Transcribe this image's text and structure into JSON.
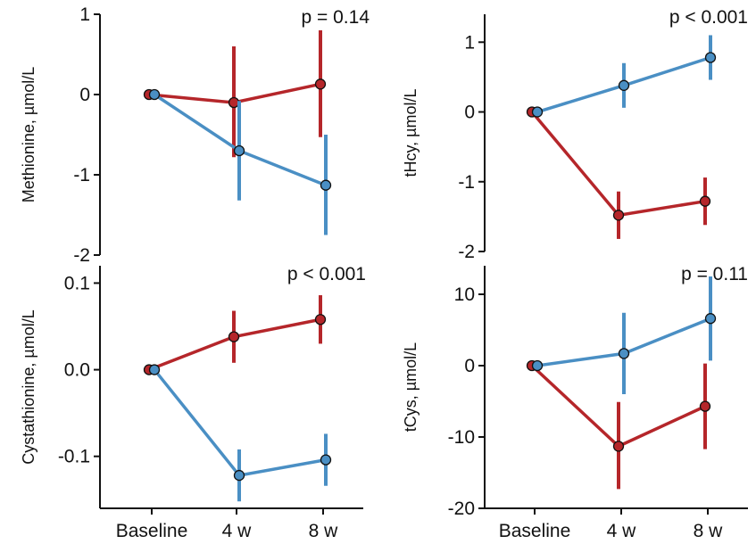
{
  "figure": {
    "x_categories": [
      "Baseline",
      "4 w",
      "8 w"
    ],
    "colors": {
      "red": "#b5262a",
      "blue": "#4a8fc4",
      "axis": "#111111"
    }
  },
  "chart_data": [
    {
      "type": "line",
      "panel": "top-left",
      "ylabel": "Methionine, µmol/L",
      "annotation": "p =  0.14",
      "ylim": [
        -2,
        1
      ],
      "yticks": [
        -2,
        -1,
        0,
        1
      ],
      "ytick_labels": [
        "-2",
        "-1",
        "0",
        "1"
      ],
      "categories": [
        "Baseline",
        "4 w",
        "8 w"
      ],
      "series": [
        {
          "color": "#b5262a",
          "values": [
            0,
            -0.1,
            0.13
          ],
          "lower": [
            0,
            -0.78,
            -0.53
          ],
          "upper": [
            0,
            0.6,
            0.8
          ]
        },
        {
          "color": "#4a8fc4",
          "values": [
            0,
            -0.7,
            -1.13
          ],
          "lower": [
            0,
            -1.32,
            -1.75
          ],
          "upper": [
            0,
            -0.08,
            -0.5
          ]
        }
      ]
    },
    {
      "type": "line",
      "panel": "top-right",
      "ylabel": "tHcy, µmol/L",
      "annotation": "p < 0.001",
      "ylim": [
        -2,
        1.4
      ],
      "yticks": [
        -2,
        -1,
        0,
        1
      ],
      "ytick_labels": [
        "-2",
        "-1",
        "0",
        "1"
      ],
      "categories": [
        "Baseline",
        "4 w",
        "8 w"
      ],
      "series": [
        {
          "color": "#b5262a",
          "values": [
            0,
            -1.48,
            -1.28
          ],
          "lower": [
            0,
            -1.82,
            -1.62
          ],
          "upper": [
            0,
            -1.14,
            -0.94
          ]
        },
        {
          "color": "#4a8fc4",
          "values": [
            0,
            0.38,
            0.78
          ],
          "lower": [
            0,
            0.06,
            0.46
          ],
          "upper": [
            0,
            0.7,
            1.1
          ]
        }
      ]
    },
    {
      "type": "line",
      "panel": "bottom-left",
      "ylabel": "Cystathionine, µmol/L",
      "annotation": "p < 0.001",
      "ylim": [
        -0.16,
        0.12
      ],
      "yticks": [
        -0.1,
        0,
        0.1
      ],
      "ytick_labels": [
        "-0.1",
        "0.0",
        "0.1"
      ],
      "categories": [
        "Baseline",
        "4 w",
        "8 w"
      ],
      "series": [
        {
          "color": "#b5262a",
          "values": [
            0,
            0.038,
            0.058
          ],
          "lower": [
            0,
            0.008,
            0.03
          ],
          "upper": [
            0,
            0.068,
            0.086
          ]
        },
        {
          "color": "#4a8fc4",
          "values": [
            0,
            -0.122,
            -0.104
          ],
          "lower": [
            0,
            -0.152,
            -0.134
          ],
          "upper": [
            0,
            -0.092,
            -0.074
          ]
        }
      ]
    },
    {
      "type": "line",
      "panel": "bottom-right",
      "ylabel": "tCys, µmol/L",
      "annotation": "p =  0.11",
      "ylim": [
        -20,
        14
      ],
      "yticks": [
        -20,
        -10,
        0,
        10
      ],
      "ytick_labels": [
        "-20",
        "-10",
        "0",
        "10"
      ],
      "categories": [
        "Baseline",
        "4 w",
        "8 w"
      ],
      "series": [
        {
          "color": "#b5262a",
          "values": [
            0,
            -11.3,
            -5.7
          ],
          "lower": [
            0,
            -17.3,
            -11.7
          ],
          "upper": [
            0,
            -5.1,
            0.3
          ]
        },
        {
          "color": "#4a8fc4",
          "values": [
            0,
            1.7,
            6.6
          ],
          "lower": [
            0,
            -4.0,
            0.7
          ],
          "upper": [
            0,
            7.4,
            12.5
          ]
        }
      ]
    }
  ]
}
